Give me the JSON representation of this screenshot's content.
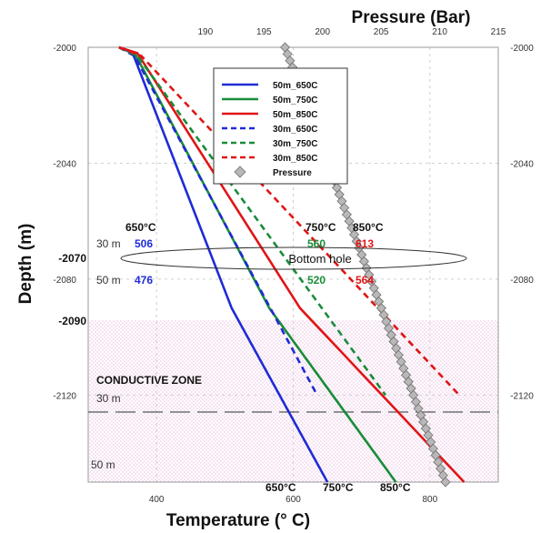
{
  "chart_data": {
    "type": "line",
    "bottom_axis": {
      "label": "Temperature (° C)",
      "range": [
        300,
        900
      ],
      "ticks": [
        400,
        600,
        800
      ]
    },
    "top_axis": {
      "label": "Pressure (Bar)",
      "range": [
        180,
        215
      ],
      "ticks": [
        190,
        195,
        200,
        205,
        210,
        215
      ]
    },
    "y_axis": {
      "label": "Depth (m)",
      "range": [
        -2000,
        -2150
      ],
      "ticks": [
        -2000,
        -2040,
        -2080,
        -2120
      ],
      "right_ticks": [
        -2000,
        -2040,
        -2080,
        -2120
      ],
      "extra_labels": [
        "-2070",
        "-2090"
      ]
    },
    "grid": true,
    "legend_position": "top-center",
    "series": [
      {
        "name": "50m_650C",
        "style": "solid",
        "color": "#1f2bd6",
        "points": [
          [
            345,
            -2000
          ],
          [
            365,
            -2002
          ],
          [
            510,
            -2090
          ],
          [
            650,
            -2150
          ]
        ]
      },
      {
        "name": "50m_750C",
        "style": "solid",
        "color": "#1a8c3a",
        "points": [
          [
            345,
            -2000
          ],
          [
            368,
            -2002
          ],
          [
            565,
            -2090
          ],
          [
            750,
            -2150
          ]
        ]
      },
      {
        "name": "50m_850C",
        "style": "solid",
        "color": "#e01515",
        "points": [
          [
            345,
            -2000
          ],
          [
            372,
            -2002
          ],
          [
            610,
            -2090
          ],
          [
            850,
            -2150
          ]
        ]
      },
      {
        "name": "30m_650C",
        "style": "dashed",
        "color": "#1f2bd6",
        "points": [
          [
            345,
            -2000
          ],
          [
            368,
            -2003
          ],
          [
            635,
            -2120
          ]
        ]
      },
      {
        "name": "30m_750C",
        "style": "dashed",
        "color": "#1a8c3a",
        "points": [
          [
            345,
            -2000
          ],
          [
            372,
            -2003
          ],
          [
            735,
            -2120
          ]
        ]
      },
      {
        "name": "30m_850C",
        "style": "dashed",
        "color": "#e01515",
        "points": [
          [
            345,
            -2000
          ],
          [
            378,
            -2003
          ],
          [
            843,
            -2120
          ]
        ]
      },
      {
        "name": "Pressure",
        "style": "markers",
        "color": "#b8b8b8",
        "axis": "top",
        "points": [
          [
            196.8,
            -2000
          ],
          [
            210.5,
            -2150
          ]
        ],
        "marker_count": 66
      }
    ],
    "annotations": {
      "bottom_hole": "Bottom hole",
      "conductive_zone": "CONDUCTIVE ZONE",
      "row_30m": "30 m",
      "row_50m": "50 m",
      "zone_30m": "30 m",
      "zone_50m": "50 m",
      "header_650": "650°C",
      "header_750": "750°C",
      "header_850": "850°C",
      "v30_650": "506",
      "v30_750": "560",
      "v30_850": "613",
      "v50_650": "476",
      "v50_750": "520",
      "v50_850": "564",
      "end_650": "650°C",
      "end_750": "750°C",
      "end_850": "850°C"
    }
  }
}
